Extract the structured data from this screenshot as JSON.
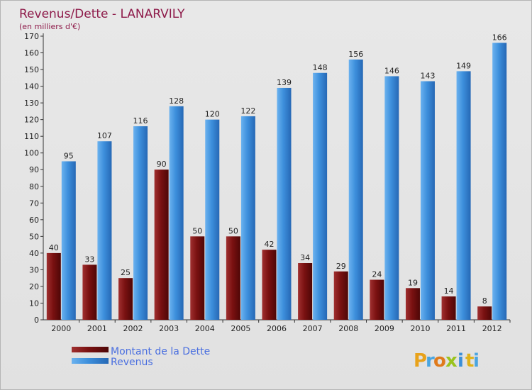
{
  "chart_data": {
    "type": "bar",
    "title": "Revenus/Dette - LANARVILY",
    "subtitle": "(en milliers d'€)",
    "categories": [
      "2000",
      "2001",
      "2002",
      "2003",
      "2004",
      "2005",
      "2006",
      "2007",
      "2008",
      "2009",
      "2010",
      "2011",
      "2012"
    ],
    "series": [
      {
        "name": "Montant de la Dette",
        "color": "#7a1111",
        "values": [
          40,
          33,
          25,
          90,
          50,
          50,
          42,
          34,
          29,
          24,
          19,
          14,
          8
        ]
      },
      {
        "name": "Revenus",
        "color": "#3d8fdc",
        "values": [
          95,
          107,
          116,
          128,
          120,
          122,
          139,
          148,
          156,
          146,
          143,
          149,
          166
        ]
      }
    ],
    "ylim": [
      0,
      170
    ],
    "yticks": [
      0,
      10,
      20,
      30,
      40,
      50,
      60,
      70,
      80,
      90,
      100,
      110,
      120,
      130,
      140,
      150,
      160,
      170
    ],
    "grid": false,
    "legend_position": "bottom-left"
  },
  "logo": {
    "letters": [
      "P",
      "r",
      "o",
      "x",
      "i",
      "t",
      "i"
    ],
    "colors": [
      "#e8a21b",
      "#4aa5e0",
      "#e07a1b",
      "#9ac31d",
      "#3a8fd8",
      "#e0b21b",
      "#4aa5e0"
    ]
  }
}
